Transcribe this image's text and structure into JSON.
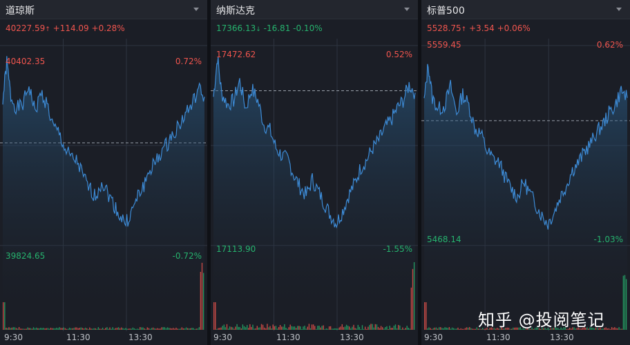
{
  "panels": [
    {
      "name": "道琼斯",
      "price": "40227.59",
      "arrow": "↑",
      "change": "+114.09",
      "pct": "+0.28%",
      "trend": "up",
      "high_value": "40402.35",
      "high_pct": "0.72%",
      "low_value": "39824.65",
      "low_pct": "-0.72%",
      "times": [
        "9:30",
        "11:30",
        "13:30"
      ],
      "prev_close_level": 0.5
    },
    {
      "name": "纳斯达克",
      "price": "17366.13",
      "arrow": "↓",
      "change": "-16.81",
      "pct": "-0.10%",
      "trend": "down",
      "high_value": "17472.62",
      "high_pct": "0.52%",
      "low_value": "17113.90",
      "low_pct": "-1.55%",
      "times": [
        "9:30",
        "11:30",
        "13:30"
      ],
      "prev_close_level": 0.75
    },
    {
      "name": "标普500",
      "price": "5528.75",
      "arrow": "↑",
      "change": "+3.54",
      "pct": "+0.06%",
      "trend": "up",
      "high_value": "5559.45",
      "high_pct": "0.62%",
      "low_value": "5468.14",
      "low_pct": "-1.03%",
      "times": [
        "9:30",
        "11:30",
        "13:30"
      ],
      "prev_close_level": 0.62
    }
  ],
  "watermark": "知乎 @投阅笔记",
  "colors": {
    "up": "#f0554e",
    "down": "#26b36e",
    "line": "#3d8bd6",
    "grid": "#2e3440"
  }
}
